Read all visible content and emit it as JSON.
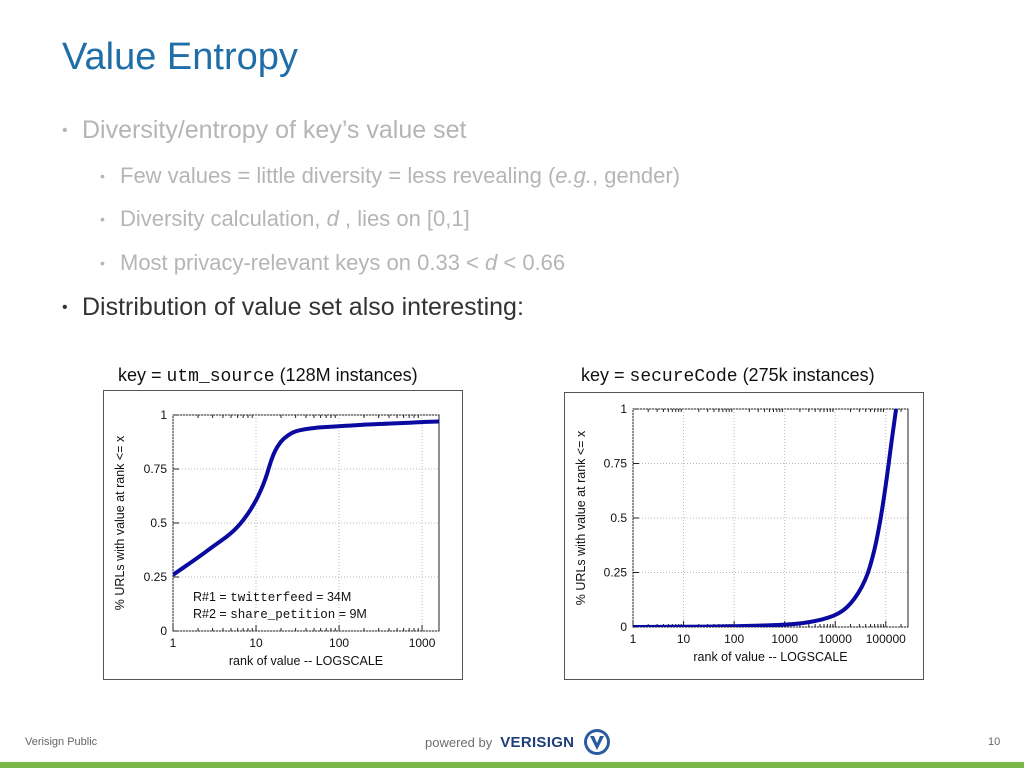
{
  "slide": {
    "title": "Value Entropy",
    "bullets": [
      {
        "text": "Diversity/entropy of key’s value set"
      },
      {
        "pre": "Few values = little diversity = less revealing (",
        "italic": "e.g.",
        "post": ", gender)"
      },
      {
        "pre": "Diversity calculation, ",
        "italic": "d",
        "post": " , lies on [0,1]"
      },
      {
        "pre": "Most privacy-relevant keys on 0.33 < ",
        "italic": "d",
        "post": " < 0.66"
      },
      {
        "text": "Distribution of value set also interesting:"
      }
    ],
    "bullet_glyph": "•",
    "footer": {
      "left": "Verisign Public",
      "powered_by": "powered by",
      "brand": "VERISIGN",
      "page_number": "10"
    }
  },
  "captions": [
    {
      "pre": "key = ",
      "code": "utm_source",
      "post": " (128M instances)"
    },
    {
      "pre": "key = ",
      "code": "secureCode",
      "post": " (275k instances)"
    }
  ],
  "chart_data": [
    {
      "type": "line",
      "xlabel": "rank of value -- LOGSCALE",
      "ylabel": "% URLs with value at rank <= x",
      "xscale": "log",
      "xlim": [
        1,
        1600
      ],
      "ylim": [
        0,
        1
      ],
      "xticks": [
        1,
        10,
        100,
        1000
      ],
      "xtick_labels": [
        "1",
        "10",
        "100",
        "1000"
      ],
      "yticks": [
        0,
        0.25,
        0.5,
        0.75,
        1
      ],
      "ytick_labels": [
        "0",
        "0.25",
        "0.5",
        "0.75",
        "1"
      ],
      "grid": true,
      "line_color": "#0a0aa0",
      "series": [
        {
          "x": [
            1,
            2,
            3,
            5,
            7,
            10,
            13,
            16,
            20,
            25,
            30,
            40,
            50,
            70,
            100,
            150,
            200,
            300,
            500,
            1000,
            1600
          ],
          "y": [
            0.26,
            0.34,
            0.39,
            0.45,
            0.51,
            0.6,
            0.7,
            0.82,
            0.88,
            0.91,
            0.925,
            0.935,
            0.94,
            0.945,
            0.948,
            0.952,
            0.955,
            0.958,
            0.962,
            0.967,
            0.97
          ]
        }
      ],
      "annotation": [
        {
          "pre": "R#1 = ",
          "code": "twitterfeed",
          "post": " = 34M"
        },
        {
          "pre": "R#2 = ",
          "code": "share_petition",
          "post": " = 9M"
        }
      ]
    },
    {
      "type": "line",
      "xlabel": "rank of value -- LOGSCALE",
      "ylabel": "% URLs with value at rank <= x",
      "xscale": "log",
      "xlim": [
        1,
        275000
      ],
      "ylim": [
        0,
        1
      ],
      "xticks": [
        1,
        10,
        100,
        1000,
        10000,
        100000
      ],
      "xtick_labels": [
        "1",
        "10",
        "100",
        "1000",
        "10000",
        "100000"
      ],
      "yticks": [
        0,
        0.25,
        0.5,
        0.75,
        1
      ],
      "ytick_labels": [
        "0",
        "0.25",
        "0.5",
        "0.75",
        "1"
      ],
      "grid": true,
      "line_color": "#0a0aa0",
      "series": [
        {
          "x": [
            1,
            10,
            100,
            1000,
            3000,
            10000,
            20000,
            40000,
            60000,
            80000,
            100000,
            130000,
            160000
          ],
          "y": [
            0.0,
            0.001,
            0.003,
            0.01,
            0.02,
            0.05,
            0.1,
            0.21,
            0.35,
            0.5,
            0.65,
            0.85,
            1.0
          ]
        }
      ]
    }
  ]
}
